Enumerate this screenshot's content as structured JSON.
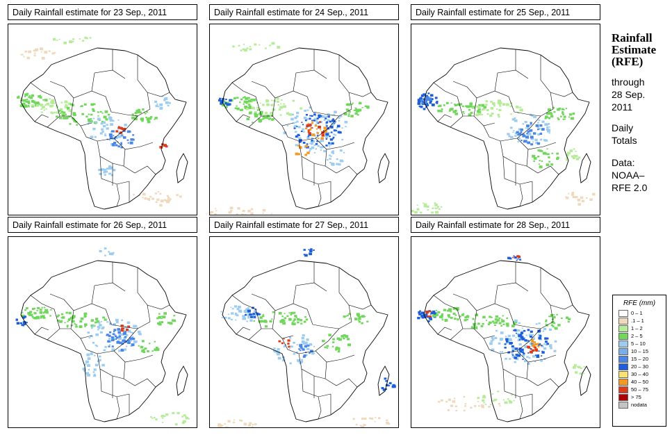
{
  "panels": [
    {
      "title": "Daily Rainfall estimate for  23 Sep., 2011",
      "rain_pattern": "scattered-west-east"
    },
    {
      "title": "Daily Rainfall estimate for  24 Sep., 2011",
      "rain_pattern": "heavy-central"
    },
    {
      "title": "Daily Rainfall estimate for  25 Sep., 2011",
      "rain_pattern": "west-coast-central"
    },
    {
      "title": "Daily Rainfall estimate for  26 Sep., 2011",
      "rain_pattern": "central-west"
    },
    {
      "title": "Daily Rainfall estimate for  27 Sep., 2011",
      "rain_pattern": "west-central-light"
    },
    {
      "title": "Daily Rainfall estimate for  28 Sep., 2011",
      "rain_pattern": "heavy-central-west"
    }
  ],
  "sidebar": {
    "heading_line1": "Rainfall",
    "heading_line2": "Estimate",
    "heading_line3": "(RFE)",
    "through": "through",
    "date_line1": "28 Sep.",
    "date_line2": "2011",
    "totals_line1": "Daily",
    "totals_line2": "Totals",
    "data_line1": "Data:",
    "data_line2": "NOAA–",
    "data_line3": "RFE 2.0"
  },
  "legend": {
    "title": "RFE (mm)",
    "items": [
      {
        "label": "0 – 1",
        "color": "#ffffff"
      },
      {
        "label": ".1 – 1",
        "color": "#efd9bd"
      },
      {
        "label": "1 – 2",
        "color": "#b4ec98"
      },
      {
        "label": "2 – 5",
        "color": "#70d65c"
      },
      {
        "label": "5 – 10",
        "color": "#9cccf0"
      },
      {
        "label": "10 – 15",
        "color": "#78aeea"
      },
      {
        "label": "15 – 20",
        "color": "#4a86e6"
      },
      {
        "label": "20 – 30",
        "color": "#1e5ed8"
      },
      {
        "label": "30 – 40",
        "color": "#fde26e"
      },
      {
        "label": "40 – 50",
        "color": "#f49a22"
      },
      {
        "label": "50 – 75",
        "color": "#e03a16"
      },
      {
        "label": "> 75",
        "color": "#b00000"
      },
      {
        "label": "nodata",
        "color": "#c4c4c4"
      }
    ]
  }
}
